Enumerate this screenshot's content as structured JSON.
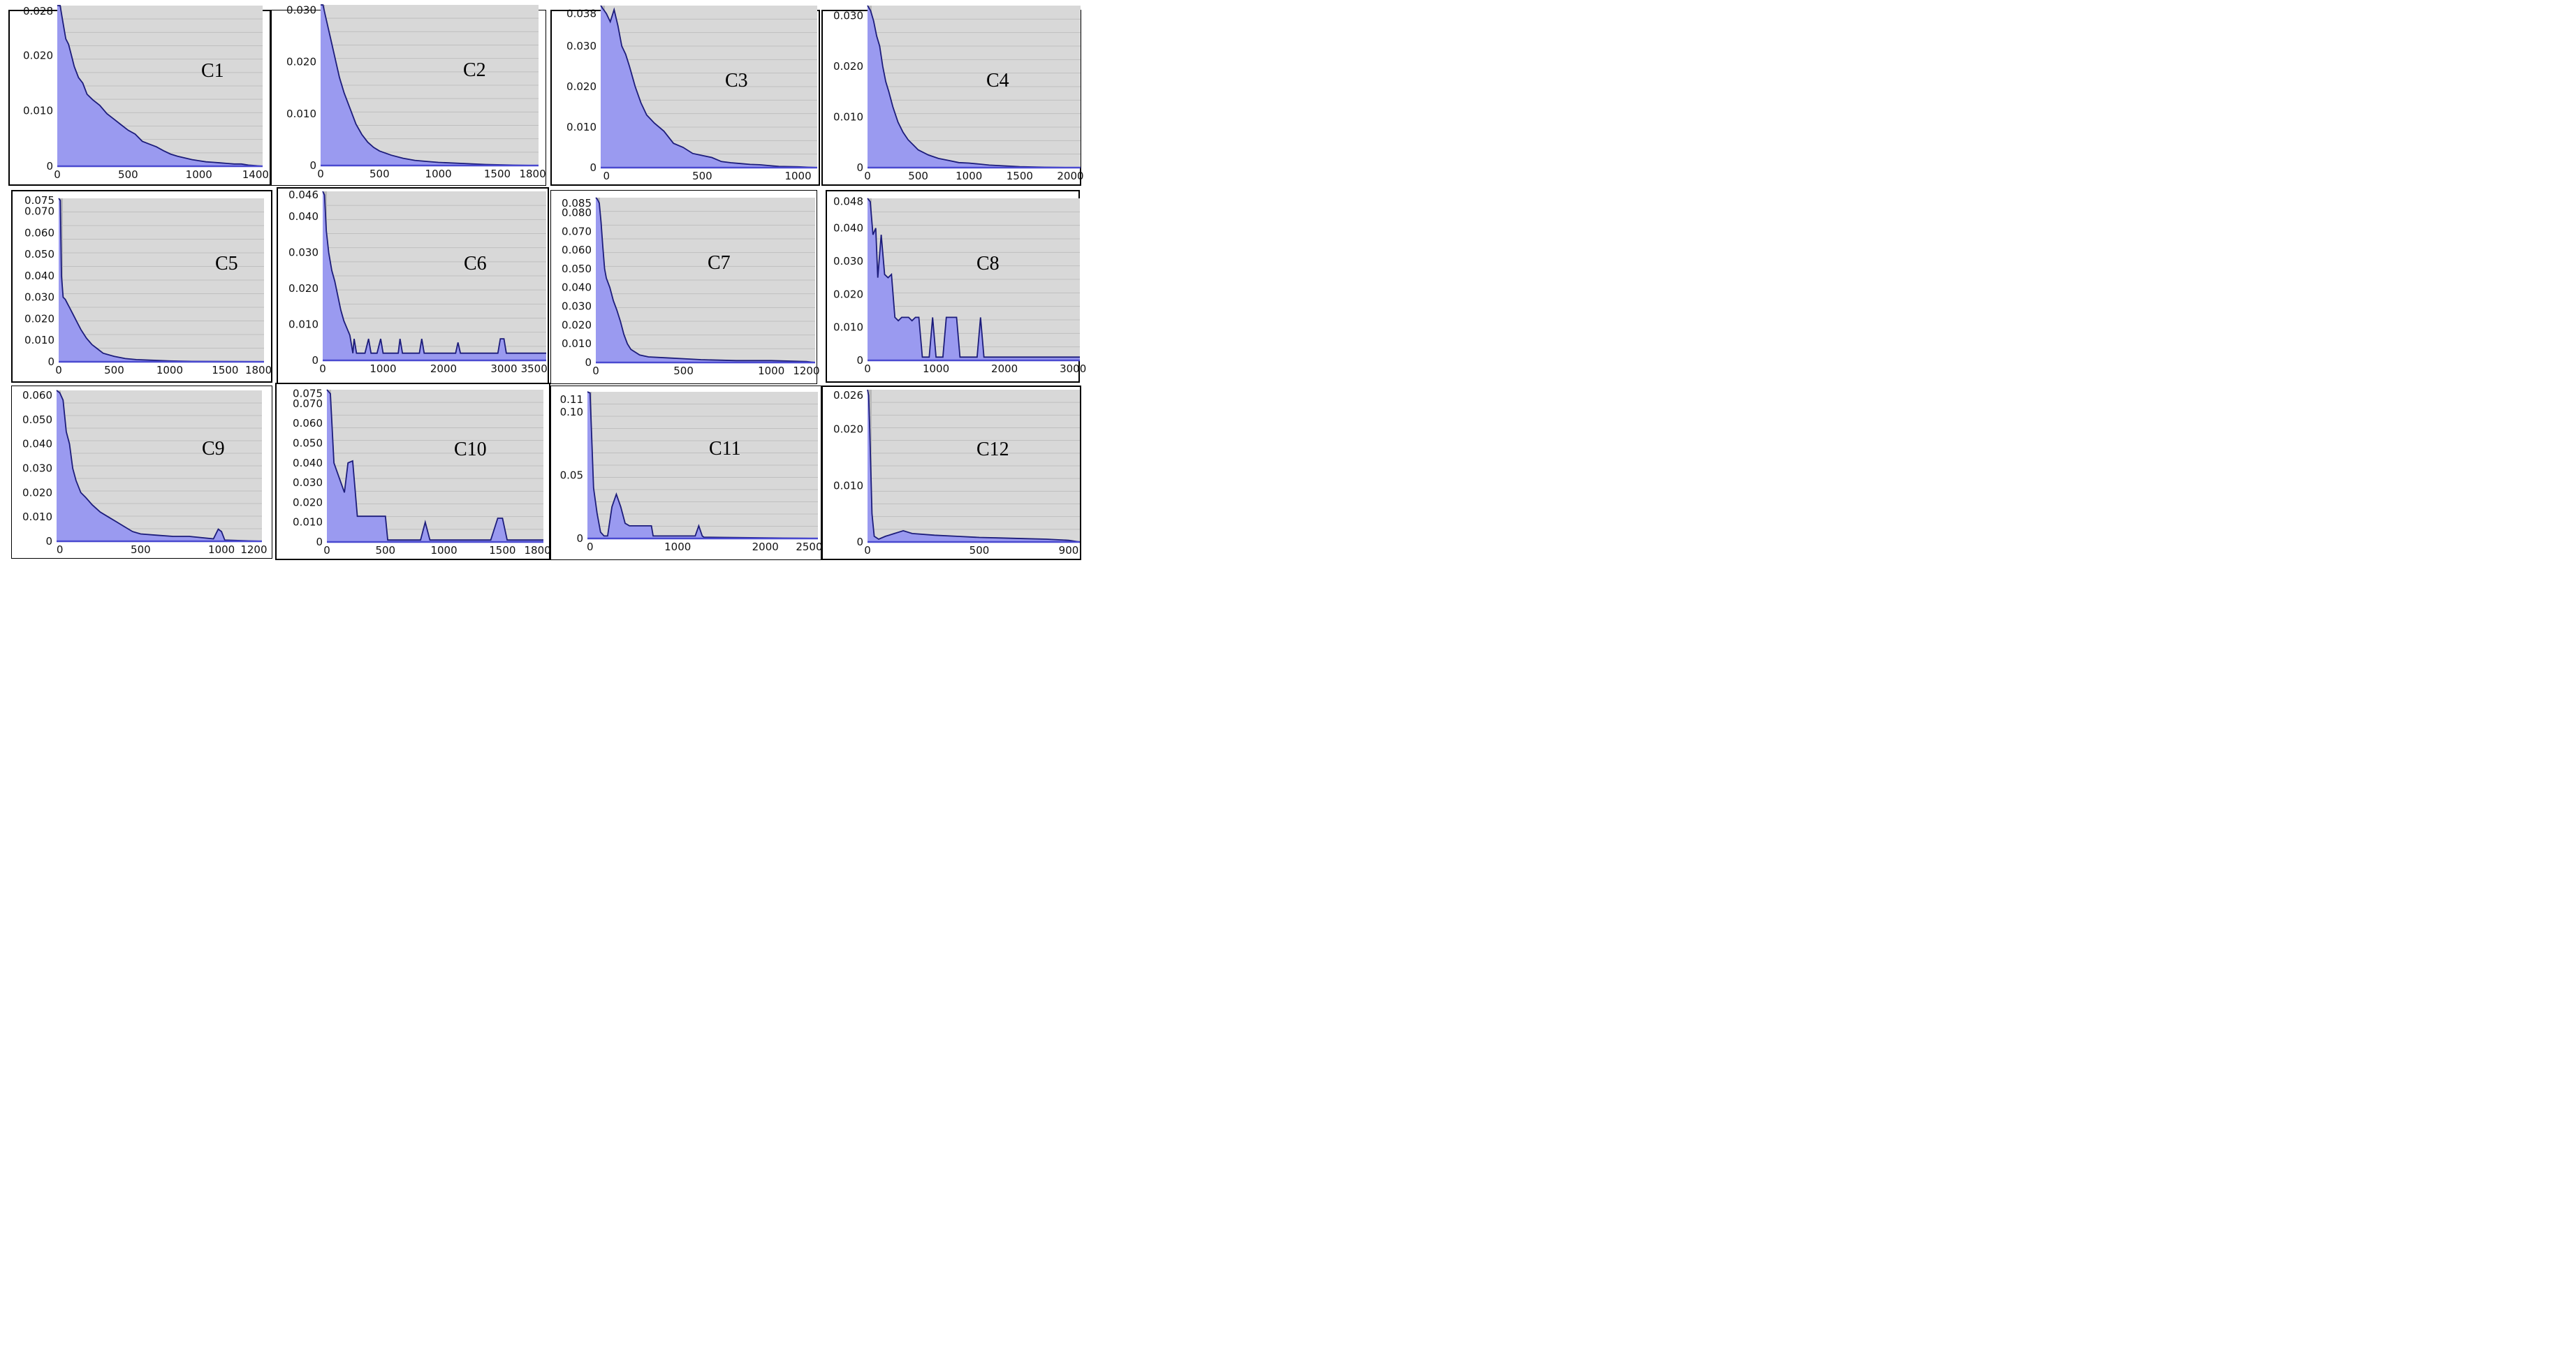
{
  "colors": {
    "plot_bg": "#d8d8d8",
    "grid": "#bfbfbf",
    "fill": "#9a9af0",
    "outline": "#1c1c7a",
    "border": "#000000"
  },
  "chart_data": [
    {
      "type": "area",
      "label": "C1",
      "xlim": [
        0,
        1450
      ],
      "ylim": [
        0,
        0.029
      ],
      "xticks": [
        {
          "v": 0,
          "t": "0"
        },
        {
          "v": 500,
          "t": "500"
        },
        {
          "v": 1000,
          "t": "1000"
        },
        {
          "v": 1400,
          "t": "1400"
        }
      ],
      "yticks": [
        {
          "v": 0,
          "t": "0"
        },
        {
          "v": 0.01,
          "t": "0.010"
        },
        {
          "v": 0.02,
          "t": "0.020"
        },
        {
          "v": 0.028,
          "t": "0.028"
        }
      ],
      "x": [
        0,
        20,
        40,
        60,
        80,
        100,
        120,
        150,
        180,
        210,
        250,
        300,
        350,
        400,
        450,
        500,
        550,
        600,
        650,
        700,
        750,
        800,
        850,
        900,
        950,
        1000,
        1050,
        1100,
        1150,
        1200,
        1250,
        1300,
        1350,
        1400,
        1450
      ],
      "y": [
        0.029,
        0.029,
        0.026,
        0.023,
        0.022,
        0.02,
        0.018,
        0.016,
        0.015,
        0.013,
        0.012,
        0.011,
        0.0095,
        0.0085,
        0.0075,
        0.0065,
        0.0058,
        0.0045,
        0.004,
        0.0035,
        0.0028,
        0.0022,
        0.0018,
        0.0015,
        0.0012,
        0.001,
        0.0008,
        0.0007,
        0.0006,
        0.0005,
        0.0004,
        0.0004,
        0.0002,
        0.0001,
        0
      ]
    },
    {
      "type": "area",
      "label": "C2",
      "xlim": [
        0,
        1850
      ],
      "ylim": [
        0,
        0.031
      ],
      "xticks": [
        {
          "v": 0,
          "t": "0"
        },
        {
          "v": 500,
          "t": "500"
        },
        {
          "v": 1000,
          "t": "1000"
        },
        {
          "v": 1500,
          "t": "1500"
        },
        {
          "v": 1800,
          "t": "1800"
        }
      ],
      "yticks": [
        {
          "v": 0,
          "t": "0"
        },
        {
          "v": 0.01,
          "t": "0.010"
        },
        {
          "v": 0.02,
          "t": "0.020"
        },
        {
          "v": 0.03,
          "t": "0.030"
        }
      ],
      "x": [
        0,
        20,
        40,
        60,
        80,
        100,
        130,
        160,
        200,
        250,
        300,
        350,
        400,
        450,
        500,
        600,
        700,
        800,
        900,
        1000,
        1200,
        1400,
        1600,
        1800,
        1850
      ],
      "y": [
        0.031,
        0.031,
        0.029,
        0.027,
        0.025,
        0.023,
        0.02,
        0.017,
        0.014,
        0.011,
        0.008,
        0.006,
        0.0045,
        0.0035,
        0.0028,
        0.002,
        0.0014,
        0.001,
        0.0008,
        0.0006,
        0.0004,
        0.0002,
        0.0001,
        0,
        0
      ]
    },
    {
      "type": "area",
      "label": "C3",
      "xlim": [
        -30,
        1100
      ],
      "ylim": [
        0,
        0.04
      ],
      "xticks": [
        {
          "v": 0,
          "t": "0"
        },
        {
          "v": 500,
          "t": "500"
        },
        {
          "v": 1000,
          "t": "1000"
        }
      ],
      "yticks": [
        {
          "v": 0,
          "t": "0"
        },
        {
          "v": 0.01,
          "t": "0.010"
        },
        {
          "v": 0.02,
          "t": "0.020"
        },
        {
          "v": 0.03,
          "t": "0.030"
        },
        {
          "v": 0.038,
          "t": "0.038"
        }
      ],
      "x": [
        -30,
        0,
        20,
        40,
        60,
        80,
        100,
        120,
        150,
        180,
        210,
        250,
        300,
        350,
        400,
        450,
        500,
        550,
        600,
        650,
        700,
        750,
        800,
        850,
        900,
        1000,
        1100
      ],
      "y": [
        0.04,
        0.038,
        0.036,
        0.039,
        0.035,
        0.03,
        0.028,
        0.025,
        0.02,
        0.016,
        0.013,
        0.011,
        0.009,
        0.006,
        0.005,
        0.0035,
        0.003,
        0.0025,
        0.0015,
        0.0012,
        0.001,
        0.0008,
        0.0007,
        0.0005,
        0.0003,
        0.0002,
        0
      ]
    },
    {
      "type": "area",
      "label": "C4",
      "xlim": [
        0,
        2100
      ],
      "ylim": [
        0,
        0.032
      ],
      "xticks": [
        {
          "v": 0,
          "t": "0"
        },
        {
          "v": 500,
          "t": "500"
        },
        {
          "v": 1000,
          "t": "1000"
        },
        {
          "v": 1500,
          "t": "1500"
        },
        {
          "v": 2000,
          "t": "2000"
        }
      ],
      "yticks": [
        {
          "v": 0,
          "t": "0"
        },
        {
          "v": 0.01,
          "t": "0.010"
        },
        {
          "v": 0.02,
          "t": "0.020"
        },
        {
          "v": 0.03,
          "t": "0.030"
        }
      ],
      "x": [
        0,
        30,
        60,
        90,
        120,
        150,
        180,
        210,
        250,
        300,
        350,
        400,
        450,
        500,
        600,
        700,
        800,
        900,
        1000,
        1100,
        1200,
        1300,
        1500,
        1700,
        2000,
        2100
      ],
      "y": [
        0.032,
        0.031,
        0.029,
        0.026,
        0.024,
        0.02,
        0.017,
        0.015,
        0.012,
        0.009,
        0.007,
        0.0055,
        0.0045,
        0.0035,
        0.0025,
        0.0018,
        0.0014,
        0.001,
        0.0009,
        0.0007,
        0.0005,
        0.0004,
        0.0002,
        0.0001,
        0,
        0
      ]
    },
    {
      "type": "area",
      "label": "C5",
      "xlim": [
        0,
        1850
      ],
      "ylim": [
        0,
        0.076
      ],
      "xticks": [
        {
          "v": 0,
          "t": "0"
        },
        {
          "v": 500,
          "t": "500"
        },
        {
          "v": 1000,
          "t": "1000"
        },
        {
          "v": 1500,
          "t": "1500"
        },
        {
          "v": 1800,
          "t": "1800"
        }
      ],
      "yticks": [
        {
          "v": 0,
          "t": "0"
        },
        {
          "v": 0.01,
          "t": "0.010"
        },
        {
          "v": 0.02,
          "t": "0.020"
        },
        {
          "v": 0.03,
          "t": "0.030"
        },
        {
          "v": 0.04,
          "t": "0.040"
        },
        {
          "v": 0.05,
          "t": "0.050"
        },
        {
          "v": 0.06,
          "t": "0.060"
        },
        {
          "v": 0.07,
          "t": "0.070"
        },
        {
          "v": 0.075,
          "t": "0.075"
        }
      ],
      "x": [
        0,
        15,
        25,
        40,
        60,
        80,
        100,
        130,
        160,
        200,
        250,
        300,
        350,
        400,
        500,
        600,
        700,
        800,
        1000,
        1200,
        1500,
        1850
      ],
      "y": [
        0.076,
        0.075,
        0.04,
        0.03,
        0.029,
        0.027,
        0.025,
        0.022,
        0.019,
        0.015,
        0.011,
        0.008,
        0.006,
        0.004,
        0.0025,
        0.0015,
        0.001,
        0.0008,
        0.0004,
        0.0002,
        0.0001,
        0
      ]
    },
    {
      "type": "area",
      "label": "C6",
      "xlim": [
        0,
        3700
      ],
      "ylim": [
        0,
        0.047
      ],
      "xticks": [
        {
          "v": 0,
          "t": "0"
        },
        {
          "v": 1000,
          "t": "1000"
        },
        {
          "v": 2000,
          "t": "2000"
        },
        {
          "v": 3000,
          "t": "3000"
        },
        {
          "v": 3500,
          "t": "3500"
        }
      ],
      "yticks": [
        {
          "v": 0,
          "t": "0"
        },
        {
          "v": 0.01,
          "t": "0.010"
        },
        {
          "v": 0.02,
          "t": "0.020"
        },
        {
          "v": 0.03,
          "t": "0.030"
        },
        {
          "v": 0.04,
          "t": "0.040"
        },
        {
          "v": 0.046,
          "t": "0.046"
        }
      ],
      "x": [
        0,
        30,
        60,
        100,
        150,
        200,
        250,
        300,
        350,
        400,
        450,
        500,
        520,
        560,
        600,
        700,
        760,
        800,
        900,
        960,
        1000,
        1100,
        1250,
        1280,
        1320,
        1400,
        1600,
        1640,
        1680,
        1800,
        2200,
        2240,
        2280,
        2400,
        2900,
        2940,
        3000,
        3040,
        3100,
        3700
      ],
      "y": [
        0.047,
        0.046,
        0.036,
        0.03,
        0.025,
        0.022,
        0.018,
        0.014,
        0.011,
        0.009,
        0.007,
        0.002,
        0.006,
        0.002,
        0.002,
        0.002,
        0.006,
        0.002,
        0.002,
        0.006,
        0.002,
        0.002,
        0.002,
        0.006,
        0.002,
        0.002,
        0.002,
        0.006,
        0.002,
        0.002,
        0.002,
        0.005,
        0.002,
        0.002,
        0.002,
        0.006,
        0.006,
        0.002,
        0.002,
        0.002
      ]
    },
    {
      "type": "area",
      "label": "C7",
      "xlim": [
        0,
        1250
      ],
      "ylim": [
        0,
        0.088
      ],
      "xticks": [
        {
          "v": 0,
          "t": "0"
        },
        {
          "v": 500,
          "t": "500"
        },
        {
          "v": 1000,
          "t": "1000"
        },
        {
          "v": 1200,
          "t": "1200"
        }
      ],
      "yticks": [
        {
          "v": 0,
          "t": "0"
        },
        {
          "v": 0.01,
          "t": "0.010"
        },
        {
          "v": 0.02,
          "t": "0.020"
        },
        {
          "v": 0.03,
          "t": "0.030"
        },
        {
          "v": 0.04,
          "t": "0.040"
        },
        {
          "v": 0.05,
          "t": "0.050"
        },
        {
          "v": 0.06,
          "t": "0.060"
        },
        {
          "v": 0.07,
          "t": "0.070"
        },
        {
          "v": 0.08,
          "t": "0.080"
        },
        {
          "v": 0.085,
          "t": "0.085"
        }
      ],
      "x": [
        0,
        10,
        20,
        30,
        40,
        50,
        60,
        80,
        100,
        120,
        140,
        160,
        180,
        200,
        250,
        300,
        400,
        500,
        600,
        800,
        1000,
        1200,
        1250
      ],
      "y": [
        0.088,
        0.087,
        0.085,
        0.075,
        0.062,
        0.05,
        0.045,
        0.04,
        0.033,
        0.028,
        0.022,
        0.015,
        0.01,
        0.007,
        0.004,
        0.003,
        0.0025,
        0.002,
        0.0015,
        0.001,
        0.001,
        0.0005,
        0
      ]
    },
    {
      "type": "area",
      "label": "C8",
      "xlim": [
        0,
        3100
      ],
      "ylim": [
        0,
        0.049
      ],
      "xticks": [
        {
          "v": 0,
          "t": "0"
        },
        {
          "v": 1000,
          "t": "1000"
        },
        {
          "v": 2000,
          "t": "2000"
        },
        {
          "v": 3000,
          "t": "3000"
        }
      ],
      "yticks": [
        {
          "v": 0,
          "t": "0"
        },
        {
          "v": 0.01,
          "t": "0.010"
        },
        {
          "v": 0.02,
          "t": "0.020"
        },
        {
          "v": 0.03,
          "t": "0.030"
        },
        {
          "v": 0.04,
          "t": "0.040"
        },
        {
          "v": 0.048,
          "t": "0.048"
        }
      ],
      "x": [
        0,
        40,
        80,
        120,
        150,
        200,
        250,
        300,
        350,
        400,
        450,
        500,
        550,
        600,
        650,
        700,
        750,
        800,
        900,
        950,
        1000,
        1100,
        1150,
        1200,
        1250,
        1300,
        1350,
        1500,
        1600,
        1650,
        1700,
        3100
      ],
      "y": [
        0.049,
        0.048,
        0.038,
        0.04,
        0.025,
        0.038,
        0.026,
        0.025,
        0.026,
        0.013,
        0.012,
        0.013,
        0.013,
        0.013,
        0.012,
        0.013,
        0.013,
        0.001,
        0.001,
        0.013,
        0.001,
        0.001,
        0.013,
        0.013,
        0.013,
        0.013,
        0.001,
        0.001,
        0.001,
        0.013,
        0.001,
        0.001
      ]
    },
    {
      "type": "area",
      "label": "C9",
      "xlim": [
        -20,
        1250
      ],
      "ylim": [
        0,
        0.062
      ],
      "xticks": [
        {
          "v": 0,
          "t": "0"
        },
        {
          "v": 500,
          "t": "500"
        },
        {
          "v": 1000,
          "t": "1000"
        },
        {
          "v": 1200,
          "t": "1200"
        }
      ],
      "yticks": [
        {
          "v": 0,
          "t": "0"
        },
        {
          "v": 0.01,
          "t": "0.010"
        },
        {
          "v": 0.02,
          "t": "0.020"
        },
        {
          "v": 0.03,
          "t": "0.030"
        },
        {
          "v": 0.04,
          "t": "0.040"
        },
        {
          "v": 0.05,
          "t": "0.050"
        },
        {
          "v": 0.06,
          "t": "0.060"
        }
      ],
      "x": [
        -20,
        0,
        20,
        40,
        60,
        80,
        100,
        130,
        160,
        200,
        250,
        300,
        350,
        400,
        450,
        500,
        600,
        700,
        800,
        950,
        980,
        1000,
        1020,
        1250
      ],
      "y": [
        0.062,
        0.061,
        0.058,
        0.045,
        0.04,
        0.03,
        0.025,
        0.02,
        0.018,
        0.015,
        0.012,
        0.01,
        0.008,
        0.006,
        0.004,
        0.003,
        0.0025,
        0.002,
        0.002,
        0.001,
        0.005,
        0.004,
        0.0005,
        0
      ]
    },
    {
      "type": "area",
      "label": "C10",
      "xlim": [
        0,
        1850
      ],
      "ylim": [
        0,
        0.077
      ],
      "xticks": [
        {
          "v": 0,
          "t": "0"
        },
        {
          "v": 500,
          "t": "500"
        },
        {
          "v": 1000,
          "t": "1000"
        },
        {
          "v": 1500,
          "t": "1500"
        },
        {
          "v": 1800,
          "t": "1800"
        }
      ],
      "yticks": [
        {
          "v": 0,
          "t": "0"
        },
        {
          "v": 0.01,
          "t": "0.010"
        },
        {
          "v": 0.02,
          "t": "0.020"
        },
        {
          "v": 0.03,
          "t": "0.030"
        },
        {
          "v": 0.04,
          "t": "0.040"
        },
        {
          "v": 0.05,
          "t": "0.050"
        },
        {
          "v": 0.06,
          "t": "0.060"
        },
        {
          "v": 0.07,
          "t": "0.070"
        },
        {
          "v": 0.075,
          "t": "0.075"
        }
      ],
      "x": [
        0,
        30,
        60,
        90,
        120,
        150,
        180,
        220,
        260,
        300,
        400,
        500,
        520,
        560,
        700,
        800,
        840,
        880,
        1000,
        1400,
        1460,
        1500,
        1540,
        1850
      ],
      "y": [
        0.077,
        0.075,
        0.04,
        0.035,
        0.03,
        0.025,
        0.04,
        0.041,
        0.013,
        0.013,
        0.013,
        0.013,
        0.001,
        0.001,
        0.001,
        0.001,
        0.01,
        0.001,
        0.001,
        0.001,
        0.012,
        0.012,
        0.001,
        0.001
      ]
    },
    {
      "type": "area",
      "label": "C11",
      "xlim": [
        -30,
        2600
      ],
      "ylim": [
        0,
        0.116
      ],
      "xticks": [
        {
          "v": 0,
          "t": "0"
        },
        {
          "v": 1000,
          "t": "1000"
        },
        {
          "v": 2000,
          "t": "2000"
        },
        {
          "v": 2500,
          "t": "2500"
        }
      ],
      "yticks": [
        {
          "v": 0,
          "t": "0"
        },
        {
          "v": 0.05,
          "t": "0.05"
        },
        {
          "v": 0.1,
          "t": "0.10"
        },
        {
          "v": 0.11,
          "t": "0.11"
        }
      ],
      "x": [
        -30,
        0,
        40,
        80,
        120,
        160,
        200,
        250,
        300,
        350,
        400,
        450,
        500,
        600,
        700,
        720,
        800,
        1200,
        1240,
        1280,
        1300,
        2600
      ],
      "y": [
        0.116,
        0.115,
        0.04,
        0.02,
        0.005,
        0.002,
        0.002,
        0.025,
        0.035,
        0.025,
        0.012,
        0.01,
        0.01,
        0.01,
        0.01,
        0.002,
        0.002,
        0.002,
        0.01,
        0.002,
        0.001,
        0
      ]
    },
    {
      "type": "area",
      "label": "C12",
      "xlim": [
        0,
        950
      ],
      "ylim": [
        0,
        0.027
      ],
      "xticks": [
        {
          "v": 0,
          "t": "0"
        },
        {
          "v": 500,
          "t": "500"
        },
        {
          "v": 900,
          "t": "900"
        }
      ],
      "yticks": [
        {
          "v": 0,
          "t": "0"
        },
        {
          "v": 0.01,
          "t": "0.010"
        },
        {
          "v": 0.02,
          "t": "0.020"
        },
        {
          "v": 0.026,
          "t": "0.026"
        }
      ],
      "x": [
        0,
        5,
        10,
        20,
        30,
        50,
        80,
        120,
        160,
        200,
        300,
        400,
        500,
        600,
        700,
        800,
        900,
        950
      ],
      "y": [
        0.027,
        0.026,
        0.02,
        0.005,
        0.001,
        0.0005,
        0.001,
        0.0015,
        0.002,
        0.0015,
        0.0012,
        0.001,
        0.0008,
        0.0007,
        0.0006,
        0.0005,
        0.0003,
        0
      ]
    }
  ]
}
